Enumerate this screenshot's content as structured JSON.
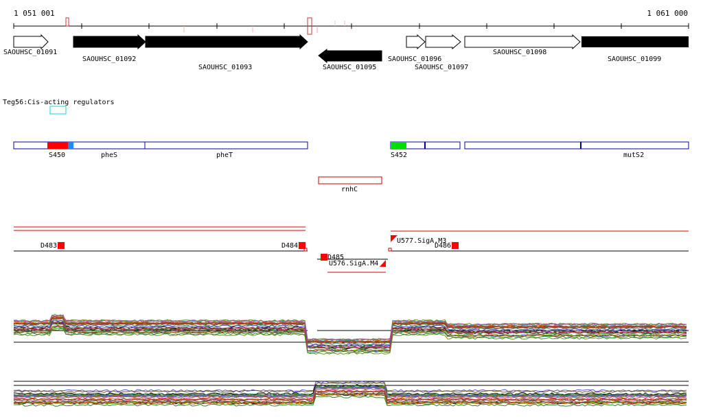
{
  "coordinates": {
    "start": "1 051 001",
    "end": "1 061 000"
  },
  "genes": [
    {
      "id": "SAOUHSC_01091",
      "filled": false,
      "strand": "+"
    },
    {
      "id": "SAOUHSC_01092",
      "filled": true,
      "strand": "+"
    },
    {
      "id": "SAOUHSC_01093",
      "filled": true,
      "strand": "+"
    },
    {
      "id": "SAOUHSC_01095",
      "filled": true,
      "strand": "-"
    },
    {
      "id": "SAOUHSC_01096",
      "filled": false,
      "strand": "+"
    },
    {
      "id": "SAOUHSC_01097",
      "filled": false,
      "strand": "+"
    },
    {
      "id": "SAOUHSC_01098",
      "filled": false,
      "strand": "+"
    },
    {
      "id": "SAOUHSC_01099",
      "filled": true,
      "strand": "+"
    }
  ],
  "regulator": {
    "label": "Teg56:Cis-acting regulators",
    "color": "#22cccc"
  },
  "transcript_segments": [
    {
      "label": "S450",
      "color": "#ff0000"
    },
    {
      "label": "pheS",
      "color": "#000099"
    },
    {
      "label": "pheT",
      "color": "#000099"
    },
    {
      "label": "S452",
      "color": "#00dd00"
    },
    {
      "label": "mutS2",
      "color": "#000099"
    }
  ],
  "rnh": {
    "label": "rnhC",
    "color": "#cc0000"
  },
  "promoters": [
    {
      "label": "D483"
    },
    {
      "label": "D484"
    },
    {
      "label": "D485"
    },
    {
      "label": "U576.SigA.M4"
    },
    {
      "label": "U577.SigA.M3"
    },
    {
      "label": "D486"
    }
  ],
  "colors": {
    "forward": "#000000",
    "promoter": "#ff0000",
    "transcript_border": "#000099"
  }
}
